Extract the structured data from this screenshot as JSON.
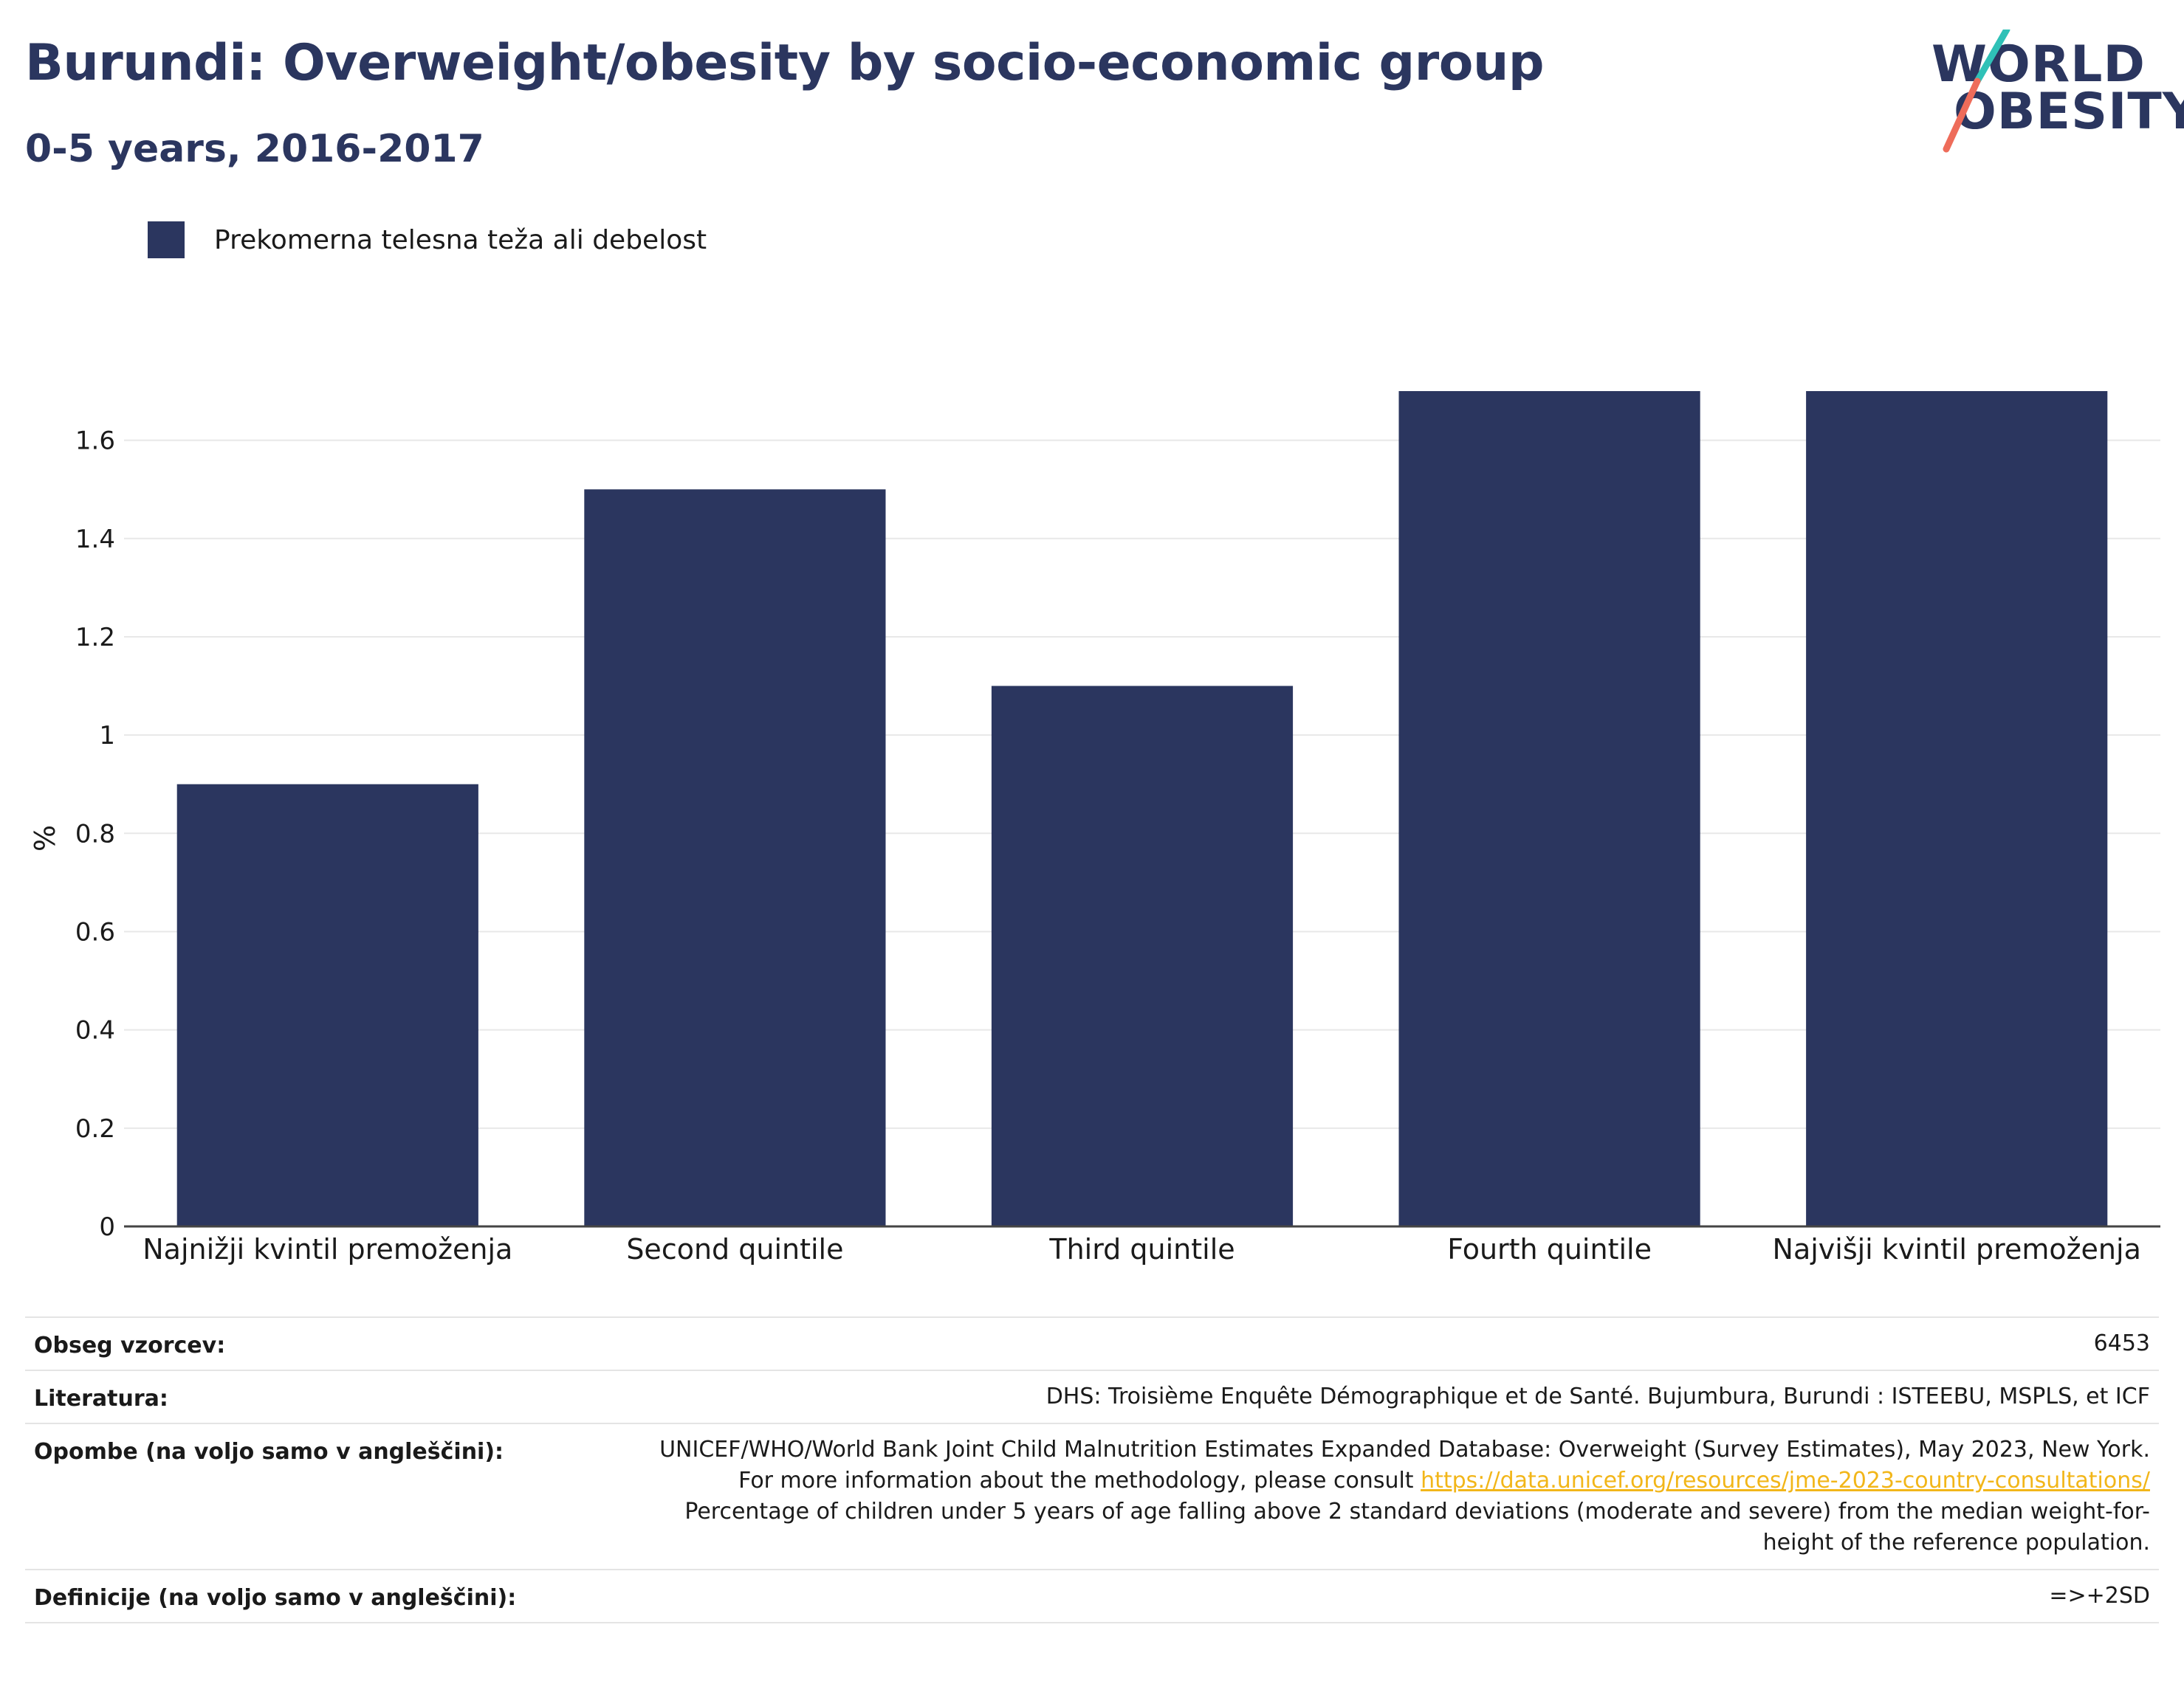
{
  "header": {
    "title": "Burundi: Overweight/obesity by socio-economic group",
    "subtitle": "0-5 years, 2016-2017"
  },
  "logo": {
    "line1": "WORLD",
    "line2": "OBESITY",
    "accent_teal": "#2fc1b7",
    "accent_coral": "#ee6c5a"
  },
  "legend": {
    "label": "Prekomerna telesna teža ali debelost",
    "color": "#2b365f"
  },
  "chart_data": {
    "type": "bar",
    "categories": [
      "Najnižji kvintil premoženja",
      "Second quintile",
      "Third quintile",
      "Fourth quintile",
      "Najvišji kvintil premoženja"
    ],
    "series": [
      {
        "name": "Prekomerna telesna teža ali debelost",
        "values": [
          0.9,
          1.5,
          1.1,
          1.7,
          1.7
        ],
        "color": "#2b365f"
      }
    ],
    "ylabel": "%",
    "ylim": [
      0,
      1.7
    ],
    "yticks": [
      0,
      0.2,
      0.4,
      0.6,
      0.8,
      1,
      1.2,
      1.4,
      1.6
    ],
    "ytick_labels": [
      "0",
      "0.2",
      "0.4",
      "0.6",
      "0.8",
      "1",
      "1.2",
      "1.4",
      "1.6"
    ],
    "grid": true
  },
  "notes": {
    "sample_key": "Obseg vzorcev:",
    "sample_val": "6453",
    "lit_key": "Literatura:",
    "lit_val": "DHS: Troisième Enquête Démographique et de Santé. Bujumbura, Burundi : ISTEEBU, MSPLS, et ICF",
    "remarks_key": "Opombe (na voljo samo v angleščini):",
    "remarks_val_1": "UNICEF/WHO/World Bank Joint Child Malnutrition Estimates Expanded Database: Overweight (Survey Estimates), May 2023, New York. For more information about the methodology, please consult ",
    "remarks_link": "https://data.unicef.org/resources/jme-2023-country-consultations/",
    "remarks_val_2": " Percentage of children under 5 years of age falling above 2 standard deviations (moderate and severe) from the median weight-for-height of the reference population.",
    "def_key": "Definicije (na voljo samo v angleščini):",
    "def_val": "=>+2SD"
  }
}
